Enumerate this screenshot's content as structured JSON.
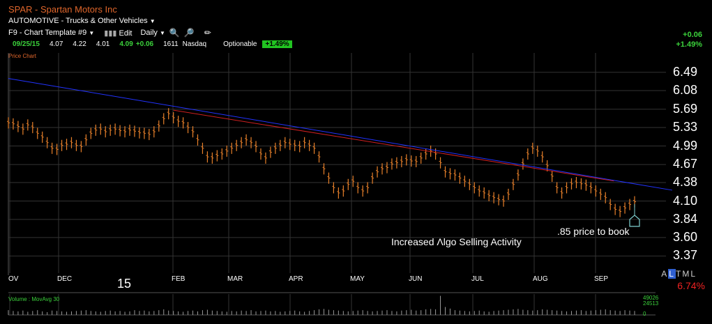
{
  "header": {
    "ticker_title": "SPAR - Spartan Motors Inc",
    "industry": "AUTOMOTIVE - Trucks & Other Vehicles",
    "template": "F9 - Chart Template #9",
    "edit_label": "Edit",
    "period_label": "Daily",
    "quote": {
      "date": "09/25/15",
      "open": "4.07",
      "high": "4.22",
      "low": "4.01",
      "close": "4.09",
      "change": "+0.06",
      "volume": "1611",
      "exchange": "Nasdaq",
      "optionable": "Optionable",
      "pct": "+1.49%"
    },
    "right_change": "+0.06",
    "right_pct": "+1.49%"
  },
  "price_chart_label": "Price Chart",
  "range_selector": {
    "a": "A",
    "l": "L",
    "t": "T",
    "m": "M",
    "l2": "L"
  },
  "range_pct": "6.74%",
  "year_label": "15",
  "volume_panel": {
    "label": "Volume : MovAvg 30",
    "scale_top": "49026",
    "scale_mid": "24513",
    "scale_zero": "0"
  },
  "colors": {
    "price": "#e8802a",
    "trend_red": "#d02020",
    "trend_blue": "#2233ff",
    "grid": "#333333",
    "accent_green": "#3bd13b"
  },
  "chart_data": {
    "type": "line",
    "title": "SPAR - Spartan Motors Inc",
    "ylabel": "",
    "xlabel": "",
    "y_ticks": [
      6.49,
      6.08,
      5.69,
      5.33,
      4.99,
      4.67,
      4.38,
      4.1,
      3.84,
      3.6,
      3.37
    ],
    "y_scale": "log",
    "ylim": [
      3.25,
      6.75
    ],
    "x_ticks": [
      "OV",
      "DEC",
      "FEB",
      "MAR",
      "APR",
      "MAY",
      "JUN",
      "JUL",
      "AUG",
      "SEP"
    ],
    "series": [
      {
        "values": [
          5.42,
          5.4,
          5.35,
          5.3,
          5.38,
          5.33,
          5.22,
          5.15,
          5.05,
          4.95,
          4.93,
          5.0,
          5.02,
          5.05,
          5.0,
          4.98,
          5.1,
          5.22,
          5.28,
          5.3,
          5.25,
          5.28,
          5.3,
          5.27,
          5.25,
          5.28,
          5.26,
          5.23,
          5.22,
          5.2,
          5.25,
          5.36,
          5.5,
          5.6,
          5.52,
          5.45,
          5.42,
          5.33,
          5.25,
          5.1,
          4.95,
          4.8,
          4.78,
          4.82,
          4.85,
          4.9,
          4.95,
          5.0,
          5.05,
          5.1,
          5.05,
          4.98,
          4.85,
          4.78,
          4.88,
          4.95,
          5.0,
          5.05,
          5.02,
          5.0,
          4.98,
          5.05,
          5.0,
          4.95,
          4.8,
          4.6,
          4.45,
          4.3,
          4.22,
          4.25,
          4.35,
          4.4,
          4.3,
          4.25,
          4.3,
          4.45,
          4.55,
          4.6,
          4.62,
          4.68,
          4.7,
          4.72,
          4.75,
          4.73,
          4.72,
          4.78,
          4.85,
          4.9,
          4.85,
          4.7,
          4.55,
          4.52,
          4.5,
          4.45,
          4.4,
          4.35,
          4.3,
          4.25,
          4.22,
          4.18,
          4.15,
          4.12,
          4.1,
          4.2,
          4.35,
          4.5,
          4.68,
          4.85,
          4.95,
          4.9,
          4.8,
          4.65,
          4.48,
          4.3,
          4.22,
          4.3,
          4.36,
          4.38,
          4.36,
          4.34,
          4.3,
          4.25,
          4.2,
          4.15,
          4.05,
          3.98,
          3.95,
          4.0,
          4.05,
          4.09
        ]
      }
    ],
    "trendlines": [
      {
        "color": "blue",
        "from": [
          0,
          6.35
        ],
        "to": [
          131,
          4.22
        ]
      },
      {
        "color": "red",
        "from": [
          34,
          5.67
        ],
        "to": [
          119,
          4.36
        ]
      }
    ],
    "annotations": [
      {
        "text": "Increased Λlgo Selling Activity"
      },
      {
        "text": ".85 price to book"
      }
    ],
    "volume": [
      12,
      10,
      9,
      11,
      8,
      10,
      12,
      9,
      7,
      11,
      10,
      9,
      8,
      9,
      10,
      11,
      12,
      10,
      9,
      8,
      10,
      11,
      9,
      10,
      8,
      9,
      12,
      10,
      11,
      9,
      10,
      12,
      14,
      11,
      10,
      9,
      8,
      10,
      11,
      9,
      12,
      13,
      11,
      10,
      9,
      8,
      10,
      9,
      11,
      10,
      12,
      9,
      10,
      11,
      9,
      10,
      8,
      9,
      10,
      11,
      9,
      8,
      10,
      12,
      14,
      15,
      13,
      12,
      11,
      10,
      9,
      10,
      11,
      12,
      10,
      9,
      10,
      11,
      12,
      10,
      9,
      11,
      12,
      13,
      11,
      12,
      14,
      15,
      14,
      48,
      20,
      16,
      12,
      11,
      10,
      9,
      10,
      11,
      9,
      8,
      10,
      11,
      12,
      13,
      14,
      15,
      13,
      12,
      11,
      12,
      14,
      13,
      12,
      11,
      10,
      9,
      10,
      11,
      12,
      10,
      11,
      12,
      13,
      14,
      12,
      11,
      10,
      12,
      11,
      10
    ]
  }
}
